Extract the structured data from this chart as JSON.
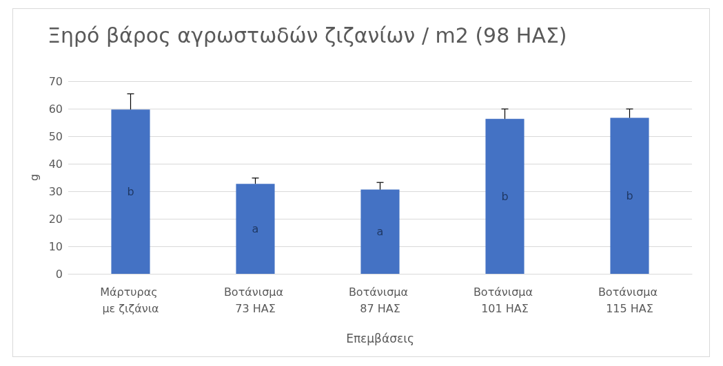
{
  "chart_data": {
    "type": "bar",
    "title": "Ξηρό βάρος αγρωστωδών ζιζανίων / m2 (98 ΗΑΣ)",
    "xlabel": "Επεμβάσεις",
    "ylabel": "g",
    "categories": [
      "Μάρτυρας με ζιζάνια",
      "Βοτάνισμα 73 ΗΑΣ",
      "Βοτάνισμα 87 ΗΑΣ",
      "Βοτάνισμα 101 ΗΑΣ",
      "Βοτάνισμα 115 ΗΑΣ"
    ],
    "values": [
      59.7,
      32.7,
      30.6,
      56.3,
      56.7
    ],
    "errors": [
      [
        59.7,
        65.4
      ],
      [
        32.7,
        34.8
      ],
      [
        30.6,
        33.2
      ],
      [
        56.3,
        59.9
      ],
      [
        56.7,
        59.9
      ]
    ],
    "color": "#4472c4",
    "ylim": [
      0,
      70
    ],
    "yticks": [
      0,
      10,
      20,
      30,
      40,
      50,
      60,
      70
    ],
    "grid": "y",
    "annotations": [
      "b",
      "a",
      "a",
      "b",
      "b"
    ]
  }
}
